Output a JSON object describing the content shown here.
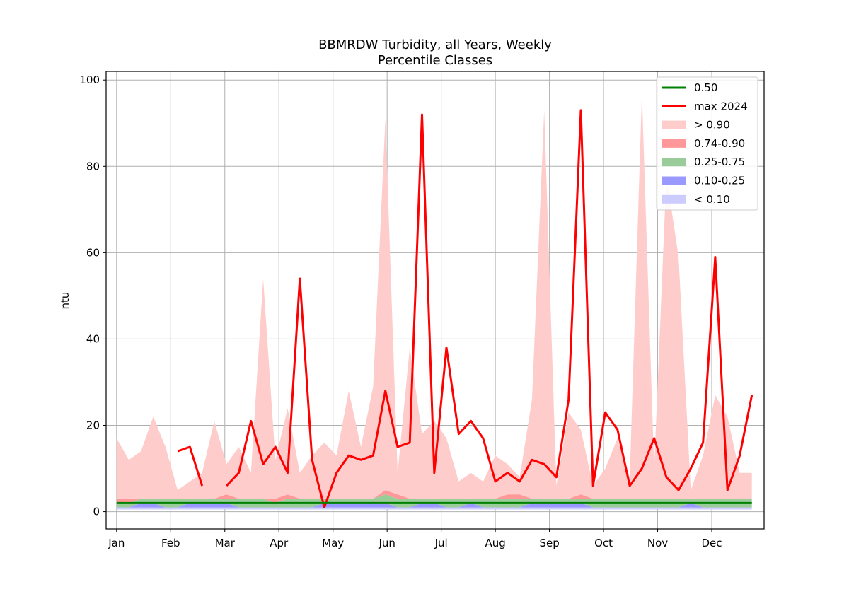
{
  "chart_data": {
    "type": "area",
    "title_line1": "BBMRDW Turbidity, all Years, Weekly",
    "title_line2": "Percentile Classes",
    "ylabel": "ntu",
    "xlabel": "",
    "ylim": [
      -4,
      102
    ],
    "yticks": [
      0,
      20,
      40,
      60,
      80,
      100
    ],
    "xlim": [
      -6,
      371
    ],
    "month_ticks": [
      {
        "label": "Jan",
        "day": 0
      },
      {
        "label": "Feb",
        "day": 31
      },
      {
        "label": "Mar",
        "day": 62
      },
      {
        "label": "Apr",
        "day": 93
      },
      {
        "label": "May",
        "day": 124
      },
      {
        "label": "Jun",
        "day": 155
      },
      {
        "label": "Jul",
        "day": 186
      },
      {
        "label": "Aug",
        "day": 217
      },
      {
        "label": "Sep",
        "day": 248
      },
      {
        "label": "Oct",
        "day": 279
      },
      {
        "label": "Nov",
        "day": 310
      },
      {
        "label": "Dec",
        "day": 341
      },
      {
        "label": "",
        "day": 372
      }
    ],
    "grid": true,
    "legend_position": "top-right",
    "legend": [
      {
        "label": "0.50",
        "kind": "line",
        "color": "#008000"
      },
      {
        "label": "max 2024",
        "kind": "line",
        "color": "#ff0000"
      },
      {
        "label": "> 0.90",
        "kind": "patch",
        "color": "#ffcccc"
      },
      {
        "label": "0.74-0.90",
        "kind": "patch",
        "color": "#ff9999"
      },
      {
        "label": "0.25-0.75",
        "kind": "patch",
        "color": "#99cc99"
      },
      {
        "label": "0.10-0.25",
        "kind": "patch",
        "color": "#9999ff"
      },
      {
        "label": "< 0.10",
        "kind": "patch",
        "color": "#ccccff"
      }
    ],
    "week_days": [
      0,
      7,
      14,
      21,
      28,
      35,
      42,
      49,
      56,
      63,
      70,
      77,
      84,
      91,
      98,
      105,
      112,
      119,
      126,
      133,
      140,
      147,
      154,
      161,
      168,
      175,
      182,
      189,
      196,
      203,
      210,
      217,
      224,
      231,
      238,
      245,
      252,
      259,
      266,
      273,
      280,
      287,
      294,
      301,
      308,
      315,
      322,
      329,
      336,
      343,
      350,
      357,
      364
    ],
    "bands": {
      "p0": [
        0.5,
        0.5,
        0.5,
        0.5,
        0.5,
        0.5,
        0.5,
        0.5,
        0.5,
        0.5,
        0.5,
        0.5,
        0.5,
        0.5,
        0.5,
        0.5,
        0.5,
        0.5,
        0.5,
        0.5,
        0.5,
        0.5,
        0.5,
        0.5,
        0.5,
        0.5,
        0.5,
        0.5,
        0.5,
        0.5,
        0.5,
        0.5,
        0.5,
        0.5,
        0.5,
        0.5,
        0.5,
        0.5,
        0.5,
        0.5,
        0.5,
        0.5,
        0.5,
        0.5,
        0.5,
        0.5,
        0.5,
        0.5,
        0.5,
        0.5,
        0.5,
        0.5,
        0.5
      ],
      "p10": [
        1,
        1,
        1,
        1,
        1,
        1,
        1,
        1,
        1,
        1,
        1,
        1,
        1,
        1,
        1,
        1,
        1,
        1,
        1,
        1,
        1,
        1,
        1,
        1,
        1,
        1,
        1,
        1,
        1,
        1,
        1,
        1,
        1,
        1,
        1,
        1,
        1,
        1,
        1,
        1,
        1,
        1,
        1,
        1,
        1,
        1,
        1,
        1,
        1,
        1,
        1,
        1,
        1
      ],
      "p25": [
        1,
        1,
        2,
        2,
        1,
        1,
        2,
        2,
        2,
        2,
        1,
        1,
        1,
        1,
        1,
        1,
        1,
        2,
        2,
        2,
        2,
        2,
        2,
        1,
        1,
        2,
        2,
        1,
        1,
        2,
        1,
        1,
        1,
        1,
        2,
        2,
        2,
        2,
        2,
        1,
        1,
        1,
        1,
        1,
        1,
        1,
        1,
        2,
        1,
        1,
        1,
        1,
        1
      ],
      "p75": [
        2,
        2,
        3,
        3,
        3,
        3,
        3,
        3,
        3,
        3,
        3,
        3,
        3,
        2,
        3,
        3,
        3,
        3,
        3,
        3,
        3,
        3,
        4,
        3,
        3,
        3,
        3,
        3,
        3,
        3,
        3,
        3,
        3,
        3,
        3,
        3,
        3,
        3,
        3,
        3,
        3,
        3,
        3,
        3,
        3,
        3,
        3,
        3,
        3,
        3,
        3,
        3,
        3
      ],
      "p90": [
        3,
        3,
        3,
        3,
        3,
        3,
        3,
        3,
        3,
        4,
        3,
        3,
        3,
        3,
        4,
        3,
        3,
        3,
        3,
        3,
        3,
        3,
        5,
        4,
        3,
        3,
        3,
        3,
        3,
        3,
        3,
        3,
        4,
        4,
        3,
        3,
        3,
        3,
        4,
        3,
        3,
        3,
        3,
        3,
        3,
        3,
        3,
        3,
        3,
        3,
        3,
        3,
        3
      ],
      "p100": [
        17,
        12,
        14,
        22,
        15,
        5,
        7,
        9,
        21,
        11,
        15,
        9,
        54,
        12,
        24,
        9,
        13,
        16,
        13,
        28,
        15,
        29,
        91,
        9,
        38,
        18,
        21,
        17,
        7,
        9,
        7,
        13,
        11,
        8,
        26,
        93,
        6,
        23,
        19,
        6,
        10,
        17,
        8,
        97,
        10,
        78,
        59,
        5,
        13,
        27,
        22,
        9,
        9
      ]
    },
    "series": [
      {
        "name": "max 2024",
        "color": "#ff0000",
        "segments": [
          {
            "days": [
              35,
              42,
              49,
              56,
              63,
              70,
              77,
              84,
              91,
              98,
              105,
              112,
              119,
              126,
              133,
              140,
              147,
              154,
              161,
              168,
              175,
              182,
              189,
              196,
              203,
              210,
              217,
              224,
              231,
              238,
              245,
              252,
              259,
              266,
              273,
              280,
              287,
              294,
              301,
              308,
              315,
              322,
              329,
              336,
              343,
              350,
              357,
              364
            ],
            "values": [
              14,
              15,
              6,
              null,
              6,
              9,
              21,
              11,
              15,
              9,
              54,
              12,
              1,
              9,
              13,
              12,
              13,
              28,
              15,
              16,
              92,
              9,
              38,
              18,
              21,
              17,
              7,
              9,
              7,
              12,
              11,
              8,
              26,
              93,
              6,
              23,
              19,
              6,
              10,
              17,
              8,
              5,
              10,
              16,
              59,
              5,
              13,
              27
            ]
          }
        ]
      },
      {
        "name": "0.50",
        "color": "#008000",
        "segments": [
          {
            "days": [
              0,
              364
            ],
            "values": [
              2,
              2
            ]
          }
        ]
      }
    ]
  }
}
